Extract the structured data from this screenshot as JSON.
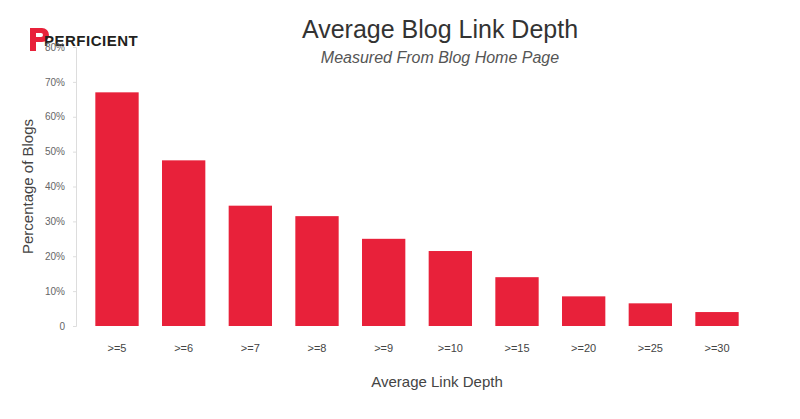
{
  "chart_data": {
    "type": "bar",
    "title": "Average Blog Link Depth",
    "subtitle": "Measured From Blog Home Page",
    "annotations": [
      "PERFICIENT"
    ],
    "x_label": "Average Link Depth",
    "y_label": "Percentage of Blogs",
    "categories": [
      ">=5",
      ">=6",
      ">=7",
      ">=8",
      ">=9",
      ">=10",
      ">=15",
      ">=20",
      ">=25",
      ">=30"
    ],
    "values": [
      67,
      47.5,
      34.5,
      31.5,
      25,
      21.5,
      14,
      8.5,
      6.5,
      4
    ],
    "color": "#e8213a",
    "ylim": [
      0,
      80
    ],
    "yticks": [
      0,
      {
        "value": 10,
        "label": "10%"
      },
      {
        "value": 20,
        "label": "20%"
      },
      {
        "value": 30,
        "label": "30%"
      },
      {
        "value": 40,
        "label": "40%"
      },
      {
        "value": 50,
        "label": "50%"
      },
      {
        "value": 60,
        "label": "60%"
      },
      {
        "value": 70,
        "label": "70%"
      },
      {
        "value": 80,
        "label": "80%"
      }
    ],
    "grid": false
  }
}
